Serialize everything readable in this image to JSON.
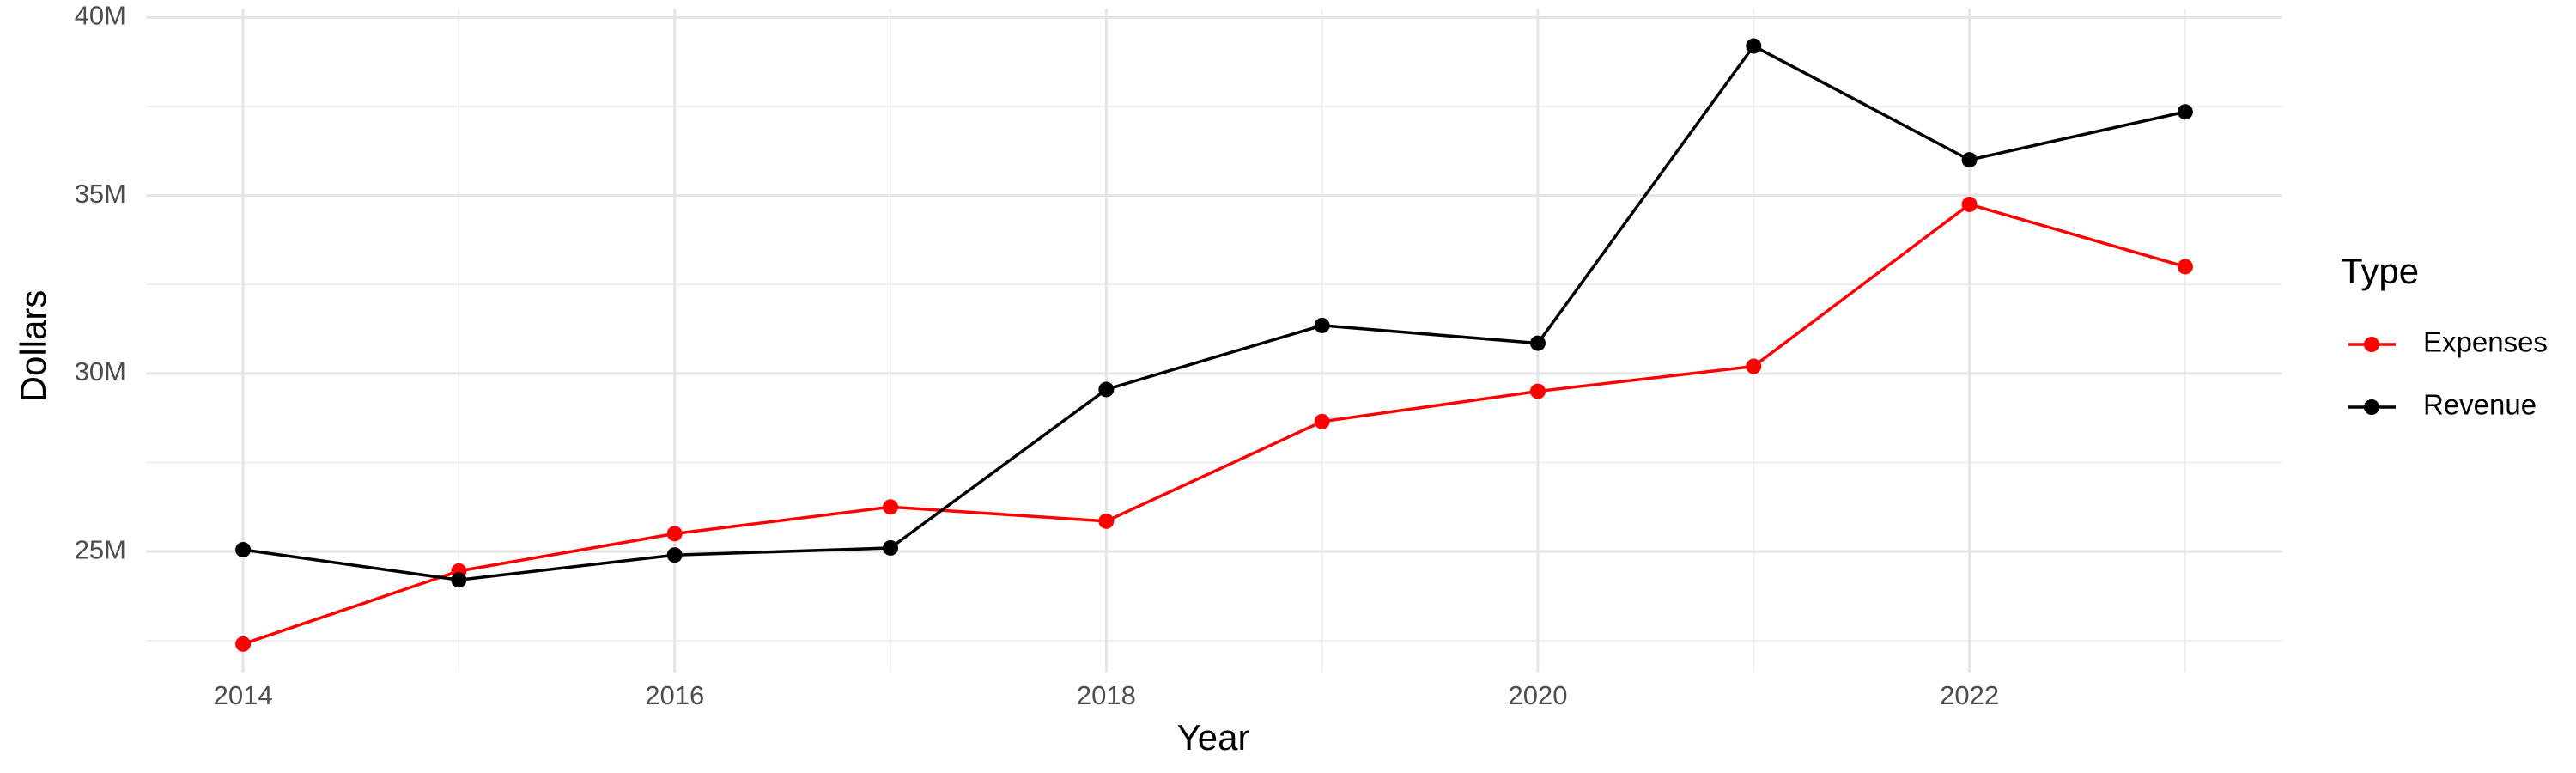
{
  "chart_data": {
    "type": "line",
    "x_label": "Year",
    "y_label": "Dollars",
    "legend_title": "Type",
    "x": [
      2014,
      2015,
      2016,
      2017,
      2018,
      2019,
      2020,
      2021,
      2022,
      2023
    ],
    "series": [
      {
        "name": "Expenses",
        "color": "#ff0000",
        "values": [
          22400000,
          24450000,
          25500000,
          26250000,
          25850000,
          28650000,
          29500000,
          30200000,
          34750000,
          33000000
        ]
      },
      {
        "name": "Revenue",
        "color": "#000000",
        "values": [
          25050000,
          24200000,
          24900000,
          25100000,
          29550000,
          31350000,
          30850000,
          39200000,
          36000000,
          37350000
        ]
      }
    ],
    "xlim": [
      2013.55,
      2023.45
    ],
    "xticks": [
      2014,
      2016,
      2018,
      2020,
      2022
    ],
    "ylim": [
      21600000,
      40250000
    ],
    "yticks": [
      {
        "value": 25000000,
        "label": "25M"
      },
      {
        "value": 30000000,
        "label": "30M"
      },
      {
        "value": 35000000,
        "label": "35M"
      },
      {
        "value": 40000000,
        "label": "40M"
      }
    ],
    "grid": true,
    "legend": "right"
  }
}
